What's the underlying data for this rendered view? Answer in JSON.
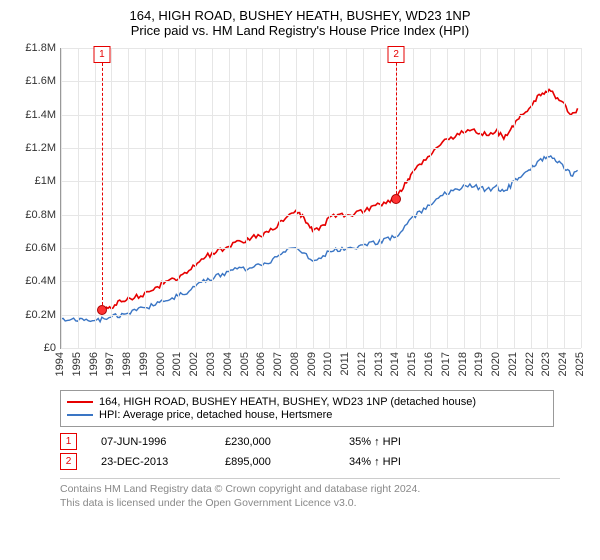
{
  "title": {
    "line1": "164, HIGH ROAD, BUSHEY HEATH, BUSHEY, WD23 1NP",
    "line2": "Price paid vs. HM Land Registry's House Price Index (HPI)"
  },
  "chart": {
    "type": "line",
    "background_color": "#ffffff",
    "grid_color": "#e6e6e6",
    "axis_color": "#999999",
    "label_color": "#333333",
    "label_fontsize": 11,
    "y": {
      "min": 0,
      "max": 1800000,
      "step": 200000,
      "labels": [
        "£0",
        "£0.2M",
        "£0.4M",
        "£0.6M",
        "£0.8M",
        "£1M",
        "£1.2M",
        "£1.4M",
        "£1.6M",
        "£1.8M"
      ]
    },
    "x": {
      "min": 1994,
      "max": 2025,
      "step": 1,
      "labels": [
        "1994",
        "1995",
        "1996",
        "1997",
        "1998",
        "1999",
        "2000",
        "2001",
        "2002",
        "2003",
        "2004",
        "2005",
        "2006",
        "2007",
        "2008",
        "2009",
        "2010",
        "2011",
        "2012",
        "2013",
        "2014",
        "2015",
        "2016",
        "2017",
        "2018",
        "2019",
        "2020",
        "2021",
        "2022",
        "2023",
        "2024",
        "2025"
      ]
    },
    "series": [
      {
        "name": "164, HIGH ROAD, BUSHEY HEATH, BUSHEY, WD23 1NP (detached house)",
        "color": "#e60000",
        "line_width": 1.6,
        "data": [
          [
            1996.44,
            230000
          ],
          [
            1996.8,
            238000
          ],
          [
            1997.2,
            260000
          ],
          [
            1997.6,
            278000
          ],
          [
            1998.0,
            290000
          ],
          [
            1998.5,
            310000
          ],
          [
            1999.0,
            320000
          ],
          [
            1999.5,
            348000
          ],
          [
            2000.0,
            385000
          ],
          [
            2000.5,
            405000
          ],
          [
            2001.0,
            420000
          ],
          [
            2001.5,
            450000
          ],
          [
            2002.0,
            498000
          ],
          [
            2002.5,
            545000
          ],
          [
            2003.0,
            565000
          ],
          [
            2003.5,
            585000
          ],
          [
            2004.0,
            610000
          ],
          [
            2004.5,
            648000
          ],
          [
            2005.0,
            640000
          ],
          [
            2005.5,
            668000
          ],
          [
            2006.0,
            680000
          ],
          [
            2006.5,
            705000
          ],
          [
            2007.0,
            748000
          ],
          [
            2007.5,
            792000
          ],
          [
            2008.0,
            810000
          ],
          [
            2008.3,
            795000
          ],
          [
            2008.7,
            750000
          ],
          [
            2009.0,
            700000
          ],
          [
            2009.5,
            720000
          ],
          [
            2010.0,
            778000
          ],
          [
            2010.5,
            798000
          ],
          [
            2011.0,
            790000
          ],
          [
            2011.5,
            810000
          ],
          [
            2012.0,
            820000
          ],
          [
            2012.5,
            845000
          ],
          [
            2013.0,
            862000
          ],
          [
            2013.5,
            880000
          ],
          [
            2013.98,
            895000
          ],
          [
            2014.3,
            955000
          ],
          [
            2014.7,
            1015000
          ],
          [
            2015.0,
            1058000
          ],
          [
            2015.5,
            1105000
          ],
          [
            2016.0,
            1155000
          ],
          [
            2016.5,
            1215000
          ],
          [
            2017.0,
            1248000
          ],
          [
            2017.5,
            1275000
          ],
          [
            2018.0,
            1298000
          ],
          [
            2018.5,
            1308000
          ],
          [
            2019.0,
            1290000
          ],
          [
            2019.5,
            1280000
          ],
          [
            2020.0,
            1300000
          ],
          [
            2020.4,
            1260000
          ],
          [
            2020.8,
            1310000
          ],
          [
            2021.2,
            1368000
          ],
          [
            2021.6,
            1410000
          ],
          [
            2022.0,
            1448000
          ],
          [
            2022.4,
            1500000
          ],
          [
            2022.8,
            1530000
          ],
          [
            2023.2,
            1545000
          ],
          [
            2023.6,
            1500000
          ],
          [
            2024.0,
            1462000
          ],
          [
            2024.4,
            1395000
          ],
          [
            2024.8,
            1430000
          ]
        ]
      },
      {
        "name": "HPI: Average price, detached house, Hertsmere",
        "color": "#3a75c4",
        "line_width": 1.4,
        "data": [
          [
            1994.0,
            175000
          ],
          [
            1994.5,
            170000
          ],
          [
            1995.0,
            168000
          ],
          [
            1995.5,
            165000
          ],
          [
            1996.0,
            168000
          ],
          [
            1996.44,
            170000
          ],
          [
            1997.0,
            185000
          ],
          [
            1997.5,
            198000
          ],
          [
            1998.0,
            212000
          ],
          [
            1998.5,
            228000
          ],
          [
            1999.0,
            240000
          ],
          [
            1999.5,
            260000
          ],
          [
            2000.0,
            288000
          ],
          [
            2000.5,
            302000
          ],
          [
            2001.0,
            312000
          ],
          [
            2001.5,
            338000
          ],
          [
            2002.0,
            372000
          ],
          [
            2002.5,
            408000
          ],
          [
            2003.0,
            420000
          ],
          [
            2003.5,
            438000
          ],
          [
            2004.0,
            455000
          ],
          [
            2004.5,
            480000
          ],
          [
            2005.0,
            475000
          ],
          [
            2005.5,
            495000
          ],
          [
            2006.0,
            505000
          ],
          [
            2006.5,
            525000
          ],
          [
            2007.0,
            558000
          ],
          [
            2007.5,
            590000
          ],
          [
            2008.0,
            602000
          ],
          [
            2008.5,
            570000
          ],
          [
            2009.0,
            520000
          ],
          [
            2009.5,
            538000
          ],
          [
            2010.0,
            578000
          ],
          [
            2010.5,
            592000
          ],
          [
            2011.0,
            588000
          ],
          [
            2011.5,
            602000
          ],
          [
            2012.0,
            610000
          ],
          [
            2012.5,
            628000
          ],
          [
            2013.0,
            640000
          ],
          [
            2013.5,
            653000
          ],
          [
            2013.98,
            668000
          ],
          [
            2014.5,
            720000
          ],
          [
            2015.0,
            788000
          ],
          [
            2015.5,
            822000
          ],
          [
            2016.0,
            858000
          ],
          [
            2016.5,
            903000
          ],
          [
            2017.0,
            928000
          ],
          [
            2017.5,
            948000
          ],
          [
            2018.0,
            965000
          ],
          [
            2018.5,
            972000
          ],
          [
            2019.0,
            958000
          ],
          [
            2019.5,
            950000
          ],
          [
            2020.0,
            965000
          ],
          [
            2020.4,
            935000
          ],
          [
            2020.8,
            975000
          ],
          [
            2021.2,
            1015000
          ],
          [
            2021.6,
            1048000
          ],
          [
            2022.0,
            1078000
          ],
          [
            2022.4,
            1115000
          ],
          [
            2022.8,
            1138000
          ],
          [
            2023.2,
            1148000
          ],
          [
            2023.6,
            1115000
          ],
          [
            2024.0,
            1088000
          ],
          [
            2024.4,
            1038000
          ],
          [
            2024.8,
            1065000
          ]
        ]
      }
    ],
    "markers": [
      {
        "n": "1",
        "year": 1996.44,
        "value": 230000,
        "color": "#e60000"
      },
      {
        "n": "2",
        "year": 2013.98,
        "value": 895000,
        "color": "#e60000"
      }
    ]
  },
  "legend": {
    "items": [
      {
        "color": "#e60000",
        "label": "164, HIGH ROAD, BUSHEY HEATH, BUSHEY, WD23 1NP (detached house)"
      },
      {
        "color": "#3a75c4",
        "label": "HPI: Average price, detached house, Hertsmere"
      }
    ]
  },
  "events": [
    {
      "n": "1",
      "color": "#e60000",
      "date": "07-JUN-1996",
      "price": "£230,000",
      "pct": "35%",
      "note": "HPI"
    },
    {
      "n": "2",
      "color": "#e60000",
      "date": "23-DEC-2013",
      "price": "£895,000",
      "pct": "34%",
      "note": "HPI"
    }
  ],
  "footer": {
    "line1": "Contains HM Land Registry data © Crown copyright and database right 2024.",
    "line2": "This data is licensed under the Open Government Licence v3.0."
  }
}
